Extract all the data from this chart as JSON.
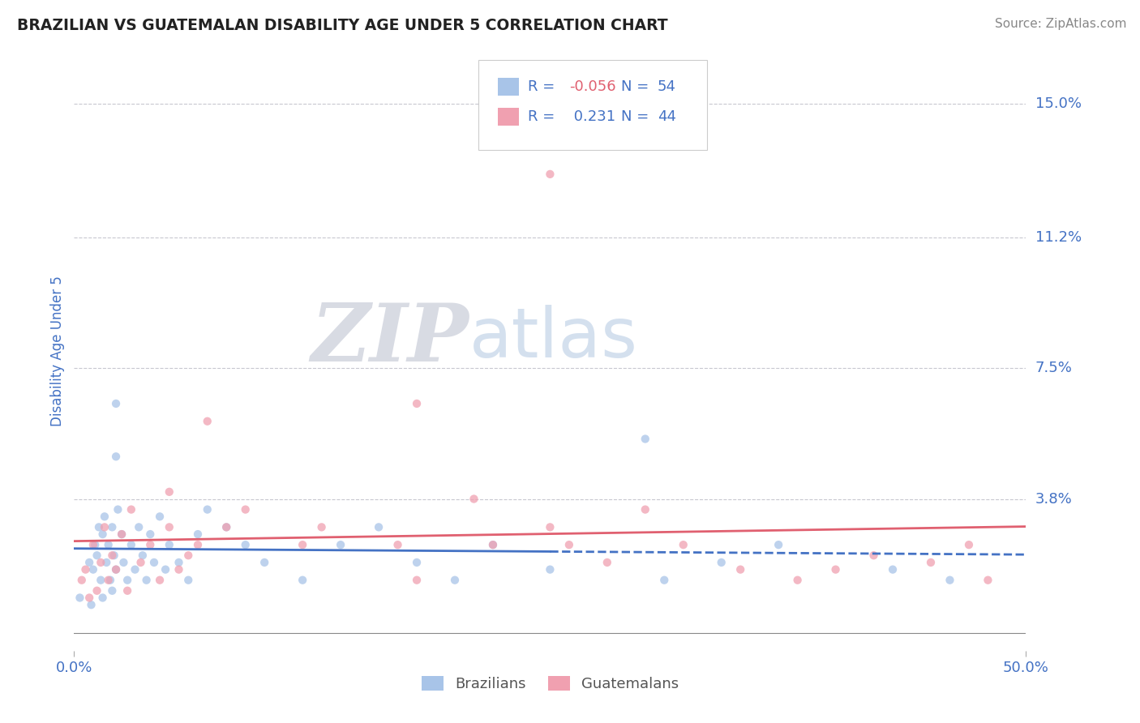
{
  "title": "BRAZILIAN VS GUATEMALAN DISABILITY AGE UNDER 5 CORRELATION CHART",
  "source": "Source: ZipAtlas.com",
  "ylabel": "Disability Age Under 5",
  "xlim": [
    0.0,
    0.5
  ],
  "ylim": [
    -0.005,
    0.165
  ],
  "ytick_vals": [
    0.038,
    0.075,
    0.112,
    0.15
  ],
  "ytick_labels": [
    "3.8%",
    "7.5%",
    "11.2%",
    "15.0%"
  ],
  "grid_color": "#c8c8d0",
  "background_color": "#ffffff",
  "brazilian_color": "#a8c4e8",
  "guatemalan_color": "#f0a0b0",
  "brazilian_line_color": "#4472c4",
  "guatemalan_line_color": "#e06070",
  "R_brazilian": -0.056,
  "N_brazilian": 54,
  "R_guatemalan": 0.231,
  "N_guatemalan": 44,
  "tick_label_color": "#4472c4",
  "watermark_ZIP_color": "#d8dce8",
  "watermark_atlas_color": "#c0cce0",
  "legend_text_color": "#4472c4",
  "legend_R_negative_color": "#e06070",
  "source_color": "#888888"
}
